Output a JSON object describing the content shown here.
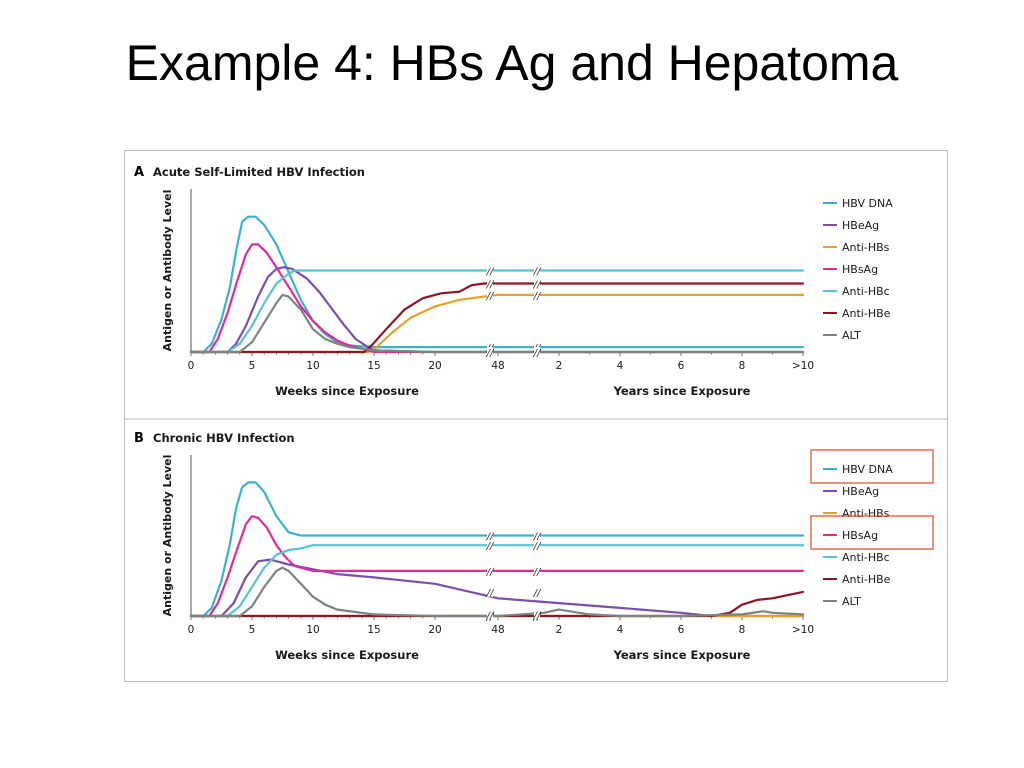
{
  "slide": {
    "title": "Example 4: HBs Ag and Hepatoma"
  },
  "colors": {
    "HBV DNA": "#3ab2cf",
    "HBeAg": "#7a4fb0",
    "Anti-HBs": "#e8a02c",
    "HBsAg": "#df2a9c",
    "Anti-HBc": "#56c2d8",
    "Anti-HBe": "#8e1524",
    "ALT": "#78867e",
    "highlight": "#e04a22"
  },
  "chart_data": [
    {
      "type": "line",
      "panel_letter": "A",
      "title": "Acute Self-Limited HBV Infection",
      "ylabel": "Antigen or Antibody Level",
      "xlabel_weeks": "Weeks since Exposure",
      "xlabel_years": "Years since Exposure",
      "x_ticks_weeks": [
        "0",
        "5",
        "10",
        "15",
        "20",
        "48"
      ],
      "x_ticks_years": [
        "2",
        "4",
        "6",
        "8",
        ">10"
      ],
      "axis_break": "//",
      "legend": [
        "HBV DNA",
        "HBeAg",
        "Anti-HBs",
        "HBsAg",
        "Anti-HBc",
        "Anti-HBe",
        "ALT"
      ],
      "legend_position": "right",
      "ylim": [
        0,
        100
      ],
      "series": [
        {
          "name": "HBV DNA",
          "points": [
            [
              0,
              0
            ],
            [
              1,
              0
            ],
            [
              1.7,
              5
            ],
            [
              2.5,
              20
            ],
            [
              3.2,
              40
            ],
            [
              3.7,
              62
            ],
            [
              4.2,
              80
            ],
            [
              4.7,
              83
            ],
            [
              5.3,
              83
            ],
            [
              6,
              78
            ],
            [
              7,
              66
            ],
            [
              8,
              49
            ],
            [
              9,
              32
            ],
            [
              10,
              19
            ],
            [
              11,
              11
            ],
            [
              12,
              6
            ],
            [
              13,
              4
            ],
            [
              15,
              3
            ],
            [
              20,
              3
            ],
            [
              48,
              3
            ],
            [
              2,
              3
            ],
            [
              4,
              3
            ],
            [
              6,
              3
            ],
            [
              8,
              3
            ],
            [
              10,
              3
            ]
          ]
        },
        {
          "name": "HBeAg",
          "points": [
            [
              0,
              0
            ],
            [
              3,
              0
            ],
            [
              3.7,
              5
            ],
            [
              4.5,
              16
            ],
            [
              5.5,
              34
            ],
            [
              6.3,
              46
            ],
            [
              7,
              51
            ],
            [
              7.6,
              52
            ],
            [
              8.3,
              51
            ],
            [
              9.5,
              45
            ],
            [
              10.5,
              37
            ],
            [
              11.5,
              27
            ],
            [
              12.5,
              17
            ],
            [
              13.5,
              8
            ],
            [
              14.5,
              3
            ],
            [
              15,
              1
            ],
            [
              20,
              0
            ],
            [
              48,
              0
            ],
            [
              2,
              0
            ],
            [
              4,
              0
            ],
            [
              6,
              0
            ],
            [
              8,
              0
            ],
            [
              10,
              0
            ]
          ]
        },
        {
          "name": "Anti-HBs",
          "points": [
            [
              0,
              0
            ],
            [
              14.5,
              0
            ],
            [
              15,
              1
            ],
            [
              15.5,
              5
            ],
            [
              16.5,
              12
            ],
            [
              18,
              21
            ],
            [
              20,
              28
            ],
            [
              22,
              32
            ],
            [
              24,
              34
            ],
            [
              48,
              35
            ],
            [
              2,
              35
            ],
            [
              4,
              35
            ],
            [
              6,
              35
            ],
            [
              8,
              35
            ],
            [
              10,
              35
            ]
          ]
        },
        {
          "name": "HBsAg",
          "points": [
            [
              0,
              0
            ],
            [
              1.5,
              0
            ],
            [
              2.2,
              8
            ],
            [
              3,
              24
            ],
            [
              3.8,
              44
            ],
            [
              4.5,
              60
            ],
            [
              5,
              66
            ],
            [
              5.5,
              66
            ],
            [
              6.2,
              61
            ],
            [
              7,
              52
            ],
            [
              8,
              40
            ],
            [
              9,
              28
            ],
            [
              10,
              19
            ],
            [
              11,
              12
            ],
            [
              12,
              7
            ],
            [
              13,
              4
            ],
            [
              14,
              2
            ],
            [
              15,
              0
            ],
            [
              20,
              0
            ],
            [
              48,
              0
            ],
            [
              2,
              0
            ],
            [
              4,
              0
            ],
            [
              6,
              0
            ],
            [
              8,
              0
            ],
            [
              10,
              0
            ]
          ]
        },
        {
          "name": "Anti-HBc",
          "points": [
            [
              0,
              0
            ],
            [
              3,
              0
            ],
            [
              4,
              5
            ],
            [
              5,
              16
            ],
            [
              6,
              30
            ],
            [
              7,
              42
            ],
            [
              8,
              48
            ],
            [
              8.5,
              50
            ],
            [
              9.5,
              50
            ],
            [
              15,
              50
            ],
            [
              20,
              50
            ],
            [
              48,
              50
            ],
            [
              2,
              50
            ],
            [
              4,
              50
            ],
            [
              6,
              50
            ],
            [
              8,
              50
            ],
            [
              10,
              50
            ]
          ]
        },
        {
          "name": "Anti-HBe",
          "points": [
            [
              0,
              0
            ],
            [
              14.2,
              0
            ],
            [
              14.8,
              4
            ],
            [
              16,
              14
            ],
            [
              17.5,
              26
            ],
            [
              19,
              33
            ],
            [
              20.5,
              36
            ],
            [
              22,
              37
            ],
            [
              23,
              41
            ],
            [
              24,
              42
            ],
            [
              48,
              42
            ],
            [
              2,
              42
            ],
            [
              4,
              42
            ],
            [
              6,
              42
            ],
            [
              8,
              42
            ],
            [
              10,
              42
            ]
          ]
        },
        {
          "name": "ALT",
          "points": [
            [
              0,
              0
            ],
            [
              4,
              0
            ],
            [
              5,
              6
            ],
            [
              6,
              18
            ],
            [
              7,
              30
            ],
            [
              7.5,
              35
            ],
            [
              8,
              34
            ],
            [
              9,
              26
            ],
            [
              10,
              14
            ],
            [
              11,
              8
            ],
            [
              12,
              5
            ],
            [
              13,
              3
            ],
            [
              14,
              2
            ],
            [
              15,
              1
            ],
            [
              20,
              0
            ],
            [
              48,
              0
            ],
            [
              2,
              0
            ],
            [
              4,
              0
            ],
            [
              6,
              0
            ],
            [
              8,
              0
            ],
            [
              10,
              0
            ]
          ]
        }
      ]
    },
    {
      "type": "line",
      "panel_letter": "B",
      "title": "Chronic HBV Infection",
      "ylabel": "Antigen or Antibody Level",
      "xlabel_weeks": "Weeks since Exposure",
      "xlabel_years": "Years since Exposure",
      "x_ticks_weeks": [
        "0",
        "5",
        "10",
        "15",
        "20",
        "48"
      ],
      "x_ticks_years": [
        "2",
        "4",
        "6",
        "8",
        ">10"
      ],
      "axis_break": "//",
      "legend": [
        "HBV DNA",
        "HBeAg",
        "Anti-HBs",
        "HBsAg",
        "Anti-HBc",
        "Anti-HBe",
        "ALT"
      ],
      "legend_position": "right",
      "legend_highlighted": [
        "HBV DNA",
        "HBsAg"
      ],
      "ylim": [
        0,
        100
      ],
      "series": [
        {
          "name": "HBV DNA",
          "points": [
            [
              0,
              0
            ],
            [
              1,
              0
            ],
            [
              1.7,
              5
            ],
            [
              2.5,
              22
            ],
            [
              3.2,
              45
            ],
            [
              3.7,
              67
            ],
            [
              4.2,
              80
            ],
            [
              4.7,
              83
            ],
            [
              5.3,
              83
            ],
            [
              6,
              77
            ],
            [
              7,
              62
            ],
            [
              8,
              52
            ],
            [
              9,
              50
            ],
            [
              10,
              50
            ],
            [
              15,
              50
            ],
            [
              20,
              50
            ],
            [
              48,
              50
            ],
            [
              2,
              50
            ],
            [
              4,
              50
            ],
            [
              6,
              50
            ],
            [
              8,
              50
            ],
            [
              10,
              50
            ]
          ]
        },
        {
          "name": "HBeAg",
          "points": [
            [
              0,
              0
            ],
            [
              2.5,
              0
            ],
            [
              3.5,
              8
            ],
            [
              4.5,
              24
            ],
            [
              5.5,
              34
            ],
            [
              6.5,
              35
            ],
            [
              8,
              32
            ],
            [
              10,
              29
            ],
            [
              12,
              26
            ],
            [
              15,
              24
            ],
            [
              20,
              20
            ],
            [
              48,
              11
            ],
            [
              2,
              8
            ],
            [
              4,
              5
            ],
            [
              6,
              2
            ],
            [
              7,
              0
            ],
            [
              8,
              0
            ],
            [
              10,
              0
            ]
          ]
        },
        {
          "name": "Anti-HBs",
          "points": [
            [
              0,
              0
            ],
            [
              15,
              0
            ],
            [
              20,
              0
            ],
            [
              48,
              0
            ],
            [
              2,
              0
            ],
            [
              4,
              0
            ],
            [
              6,
              0
            ],
            [
              8,
              0
            ],
            [
              10,
              0
            ]
          ]
        },
        {
          "name": "HBsAg",
          "points": [
            [
              0,
              0
            ],
            [
              1.5,
              0
            ],
            [
              2.2,
              8
            ],
            [
              3,
              24
            ],
            [
              3.8,
              42
            ],
            [
              4.5,
              57
            ],
            [
              5,
              62
            ],
            [
              5.5,
              61
            ],
            [
              6.2,
              55
            ],
            [
              7,
              44
            ],
            [
              7.8,
              36
            ],
            [
              8.5,
              31
            ],
            [
              10,
              28
            ],
            [
              15,
              28
            ],
            [
              20,
              28
            ],
            [
              48,
              28
            ],
            [
              2,
              28
            ],
            [
              4,
              28
            ],
            [
              6,
              28
            ],
            [
              8,
              28
            ],
            [
              10,
              28
            ]
          ]
        },
        {
          "name": "Anti-HBc",
          "points": [
            [
              0,
              0
            ],
            [
              3,
              0
            ],
            [
              4,
              6
            ],
            [
              5,
              18
            ],
            [
              6,
              30
            ],
            [
              7,
              38
            ],
            [
              8,
              41
            ],
            [
              9,
              42
            ],
            [
              10,
              44
            ],
            [
              11,
              44
            ],
            [
              15,
              44
            ],
            [
              20,
              44
            ],
            [
              48,
              44
            ],
            [
              2,
              44
            ],
            [
              4,
              44
            ],
            [
              6,
              44
            ],
            [
              8,
              44
            ],
            [
              10,
              44
            ]
          ]
        },
        {
          "name": "Anti-HBe",
          "points": [
            [
              0,
              0
            ],
            [
              15,
              0
            ],
            [
              48,
              0
            ],
            [
              2,
              0
            ],
            [
              4,
              0
            ],
            [
              6,
              0
            ],
            [
              7,
              0
            ],
            [
              7.6,
              2
            ],
            [
              8,
              7
            ],
            [
              8.5,
              10
            ],
            [
              9,
              11
            ],
            [
              9.5,
              13
            ],
            [
              10,
              15
            ]
          ]
        },
        {
          "name": "ALT",
          "points": [
            [
              0,
              0
            ],
            [
              4,
              0
            ],
            [
              5,
              6
            ],
            [
              6,
              18
            ],
            [
              7,
              28
            ],
            [
              7.5,
              30
            ],
            [
              8,
              28
            ],
            [
              9,
              20
            ],
            [
              10,
              12
            ],
            [
              11,
              7
            ],
            [
              12,
              4
            ],
            [
              14,
              2
            ],
            [
              15,
              1
            ],
            [
              20,
              0
            ],
            [
              48,
              0
            ],
            [
              1.5,
              2
            ],
            [
              2,
              4
            ],
            [
              3,
              1
            ],
            [
              4,
              0
            ],
            [
              6,
              0
            ],
            [
              8,
              1
            ],
            [
              8.7,
              3
            ],
            [
              9,
              2
            ],
            [
              10,
              1
            ]
          ]
        }
      ]
    }
  ]
}
